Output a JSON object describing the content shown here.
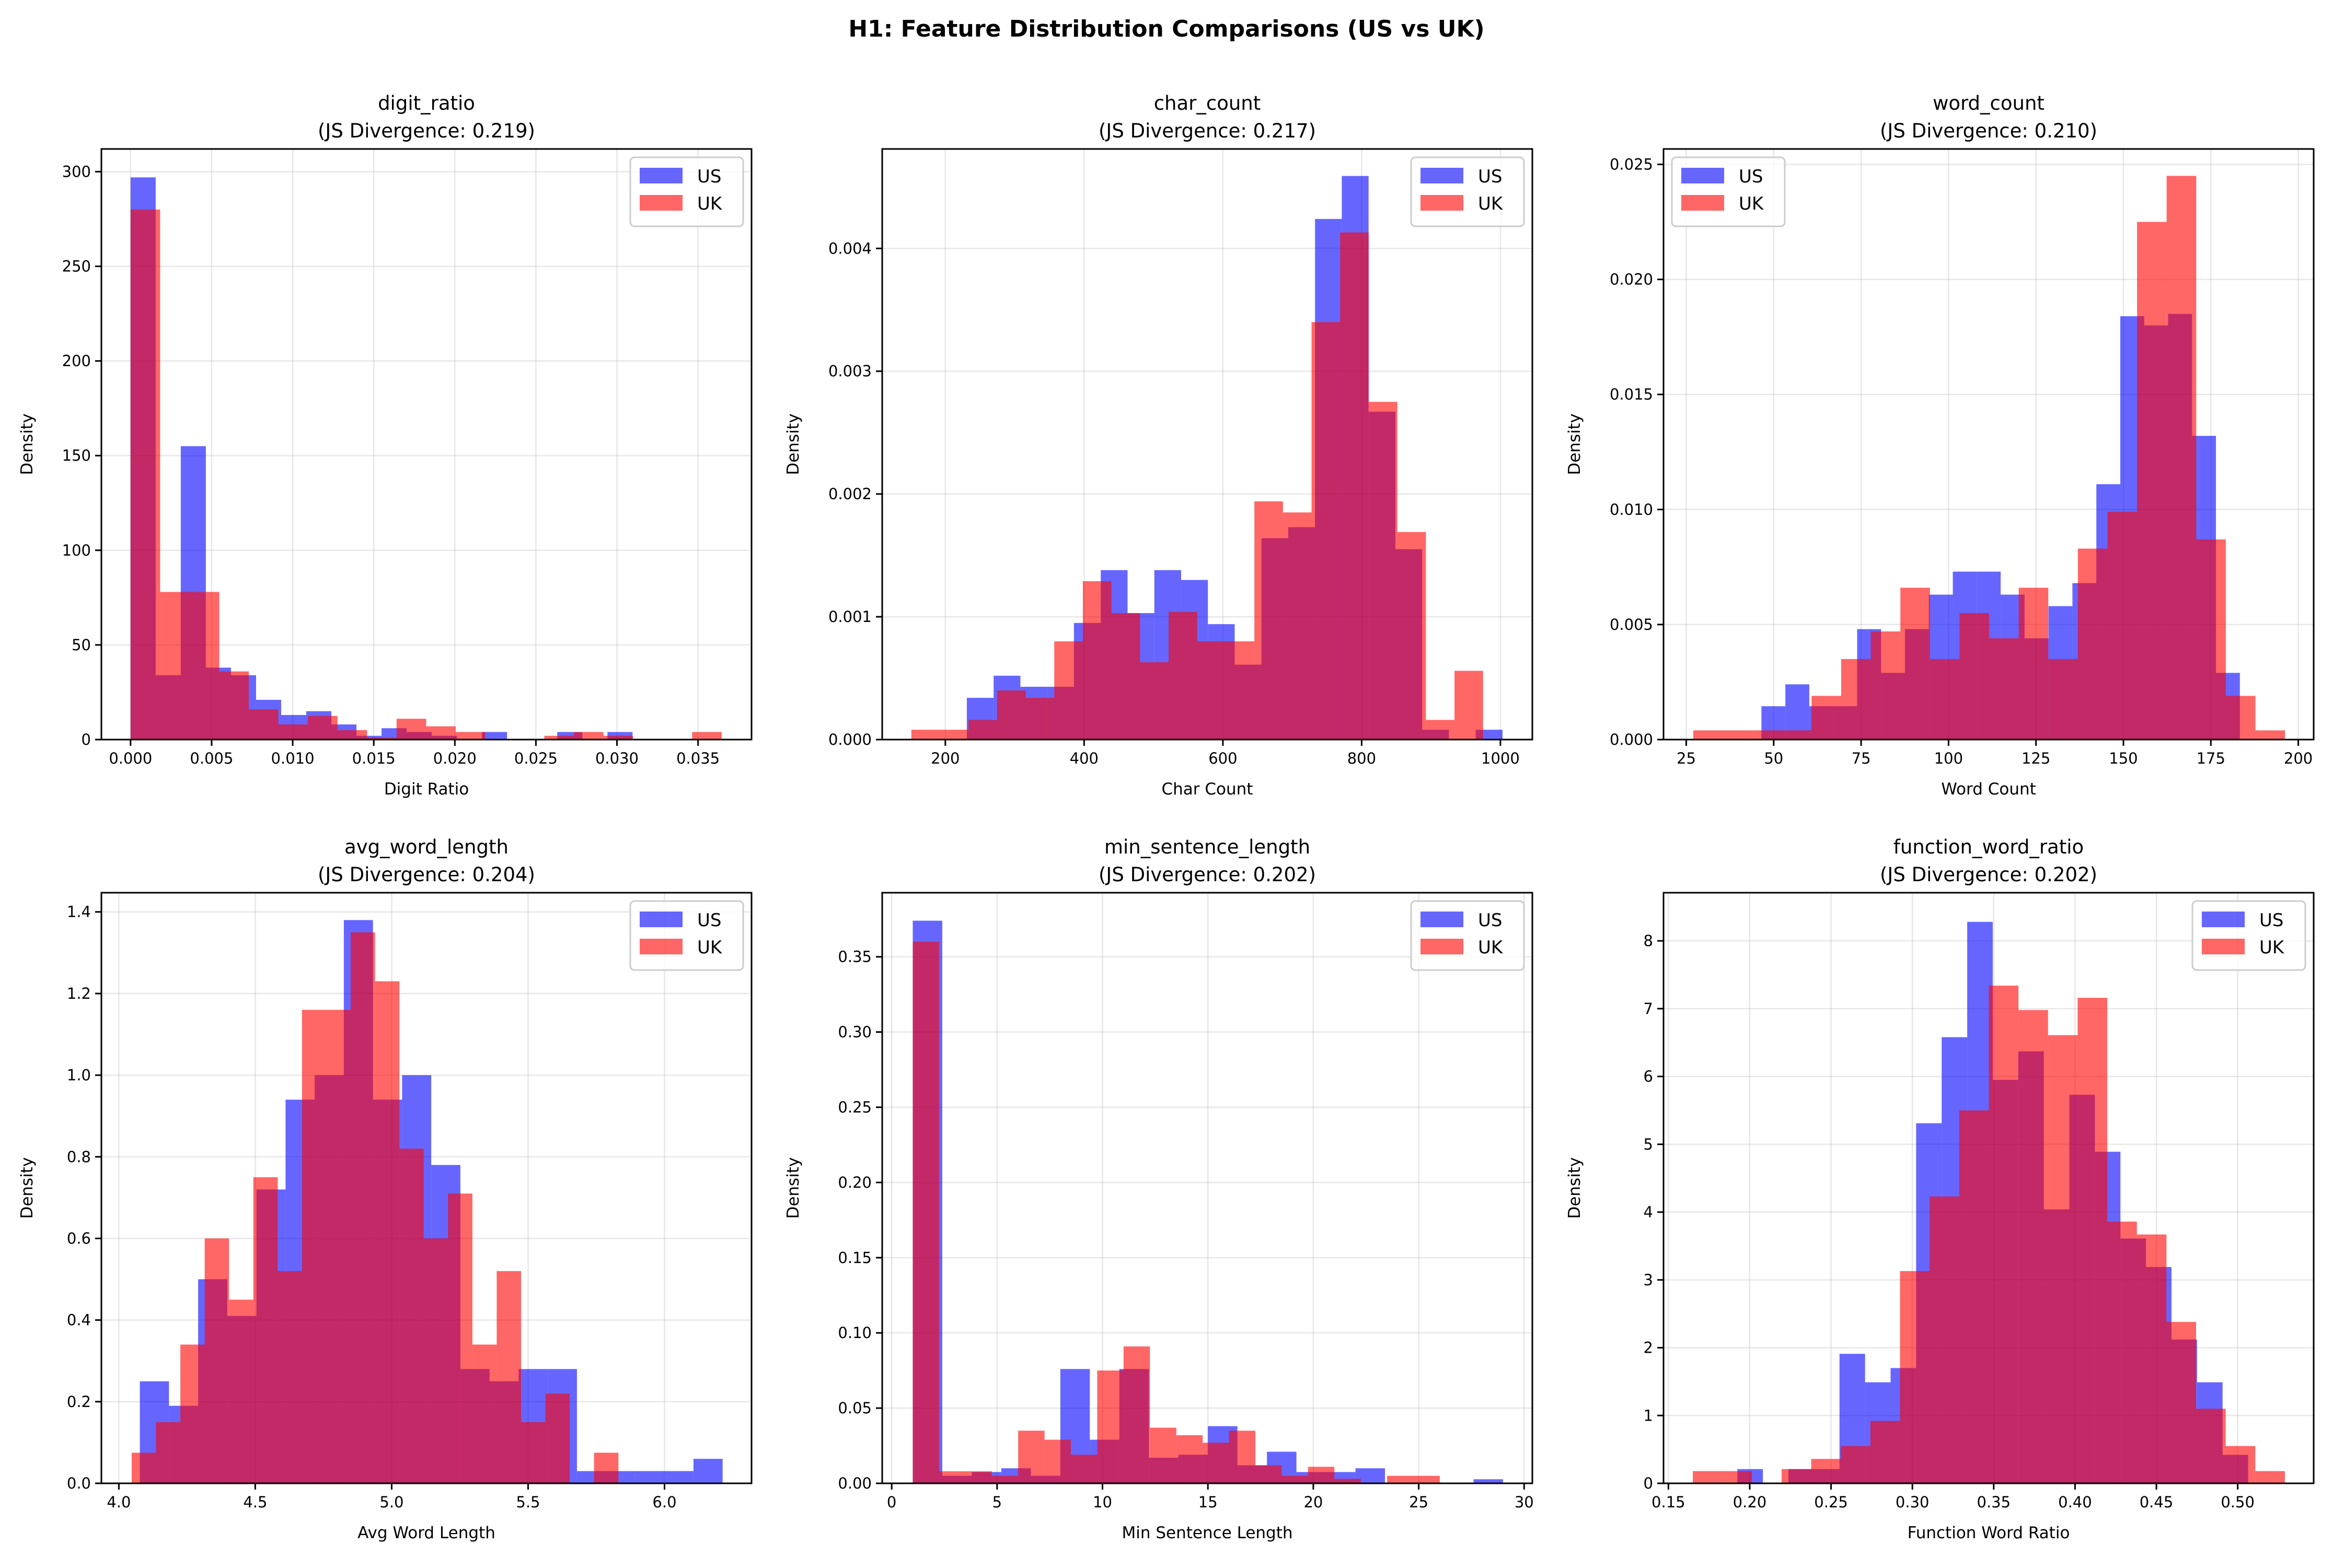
{
  "title": "H1: Feature Distribution Comparisons (US vs UK)",
  "colors": {
    "US": "#0000ff",
    "UK": "#ff0000",
    "alpha": 0.6,
    "grid": "#b0b0b0"
  },
  "chart_data": [
    {
      "type": "bar",
      "subtype": "histogram",
      "title": "digit_ratio",
      "subtitle": "(JS Divergence: 0.219)",
      "xlabel": "Digit Ratio",
      "ylabel": "Density",
      "xlim": [
        -0.0018,
        0.0383
      ],
      "ylim": [
        0,
        312
      ],
      "xticks": [
        0,
        0.005,
        0.01,
        0.015,
        0.02,
        0.025,
        0.03,
        0.035
      ],
      "xtick_labels": [
        "0.000",
        "0.005",
        "0.010",
        "0.015",
        "0.020",
        "0.025",
        "0.030",
        "0.035"
      ],
      "yticks": [
        0,
        50,
        100,
        150,
        200,
        250,
        300
      ],
      "ytick_labels": [
        "0",
        "50",
        "100",
        "150",
        "200",
        "250",
        "300"
      ],
      "grid": true,
      "legend": "top-right",
      "series": [
        {
          "name": "US",
          "bin_start": 0,
          "bin_width": 0.001548,
          "values": [
            297,
            34,
            155,
            38,
            34,
            21,
            13,
            15,
            8,
            2,
            6,
            4,
            2,
            0,
            4,
            0,
            0,
            4,
            0,
            4
          ]
        },
        {
          "name": "UK",
          "bin_start": 0,
          "bin_width": 0.001823,
          "values": [
            280,
            78,
            78,
            36,
            16,
            8,
            12.5,
            5,
            1,
            11,
            7,
            4,
            0,
            0,
            2,
            4,
            2,
            0,
            0,
            4
          ]
        }
      ]
    },
    {
      "type": "bar",
      "subtype": "histogram",
      "title": "char_count",
      "subtitle": "(JS Divergence: 0.217)",
      "xlabel": "Char Count",
      "ylabel": "Density",
      "xlim": [
        109,
        1046
      ],
      "ylim": [
        0,
        0.00481
      ],
      "xticks": [
        200,
        400,
        600,
        800,
        1000
      ],
      "xtick_labels": [
        "200",
        "400",
        "600",
        "800",
        "1000"
      ],
      "yticks": [
        0,
        0.001,
        0.002,
        0.003,
        0.004
      ],
      "ytick_labels": [
        "0.000",
        "0.001",
        "0.002",
        "0.003",
        "0.004"
      ],
      "grid": true,
      "legend": "top-right",
      "series": [
        {
          "name": "US",
          "bin_start": 231,
          "bin_width": 38.6,
          "values": [
            0.00034,
            0.00052,
            0.00043,
            0.00043,
            0.00095,
            0.00138,
            0.00103,
            0.00138,
            0.0013,
            0.00094,
            0.00061,
            0.00164,
            0.00173,
            0.00424,
            0.00459,
            0.00267,
            0.00155,
            8e-05,
            0,
            8e-05
          ]
        },
        {
          "name": "UK",
          "bin_start": 151,
          "bin_width": 41.2,
          "values": [
            8e-05,
            8e-05,
            0.00016,
            0.0004,
            0.00034,
            0.0008,
            0.00129,
            0.00103,
            0.00063,
            0.00104,
            0.0008,
            0.0008,
            0.00194,
            0.00185,
            0.0034,
            0.00413,
            0.00275,
            0.00169,
            0.00016,
            0.00056
          ]
        }
      ]
    },
    {
      "type": "bar",
      "subtype": "histogram",
      "title": "word_count",
      "subtitle": "(JS Divergence: 0.210)",
      "xlabel": "Word Count",
      "ylabel": "Density",
      "xlim": [
        18.5,
        204.4
      ],
      "ylim": [
        0,
        0.02567
      ],
      "xticks": [
        25,
        50,
        75,
        100,
        125,
        150,
        175,
        200
      ],
      "xtick_labels": [
        "25",
        "50",
        "75",
        "100",
        "125",
        "150",
        "175",
        "200"
      ],
      "yticks": [
        0,
        0.005,
        0.01,
        0.015,
        0.02,
        0.025
      ],
      "ytick_labels": [
        "0.000",
        "0.005",
        "0.010",
        "0.015",
        "0.020",
        "0.025"
      ],
      "grid": true,
      "legend": "top-left",
      "series": [
        {
          "name": "US",
          "bin_start": 46.5,
          "bin_width": 6.84,
          "values": [
            0.00145,
            0.0024,
            0.00145,
            0.00145,
            0.0048,
            0.0029,
            0.0048,
            0.0063,
            0.0073,
            0.0073,
            0.0063,
            0.0044,
            0.0058,
            0.0068,
            0.0111,
            0.0184,
            0.018,
            0.0185,
            0.0132,
            0.0029
          ]
        },
        {
          "name": "UK",
          "bin_start": 27,
          "bin_width": 8.46,
          "values": [
            0.0004,
            0.0004,
            0.0004,
            0.0004,
            0.0019,
            0.0035,
            0.0047,
            0.0066,
            0.0035,
            0.0055,
            0.0044,
            0.0066,
            0.0035,
            0.0083,
            0.0099,
            0.0225,
            0.0245,
            0.0087,
            0.0019,
            0.0004
          ]
        }
      ]
    },
    {
      "type": "bar",
      "subtype": "histogram",
      "title": "avg_word_length",
      "subtitle": "(JS Divergence: 0.204)",
      "xlabel": "Avg Word Length",
      "ylabel": "Density",
      "xlim": [
        3.936,
        6.319
      ],
      "ylim": [
        0,
        1.447
      ],
      "xticks": [
        4.0,
        4.5,
        5.0,
        5.5,
        6.0
      ],
      "xtick_labels": [
        "4.0",
        "4.5",
        "5.0",
        "5.5",
        "6.0"
      ],
      "yticks": [
        0,
        0.2,
        0.4,
        0.6,
        0.8,
        1.0,
        1.2,
        1.4
      ],
      "ytick_labels": [
        "0.0",
        "0.2",
        "0.4",
        "0.6",
        "0.8",
        "1.0",
        "1.2",
        "1.4"
      ],
      "grid": true,
      "legend": "top-right",
      "series": [
        {
          "name": "US",
          "bin_start": 4.077,
          "bin_width": 0.1068,
          "values": [
            0.25,
            0.19,
            0.5,
            0.41,
            0.72,
            0.94,
            1.0,
            1.38,
            0.94,
            1.0,
            0.78,
            0.28,
            0.25,
            0.28,
            0.28,
            0.03,
            0.03,
            0.03,
            0.03,
            0.06
          ]
        },
        {
          "name": "UK",
          "bin_start": 4.047,
          "bin_width": 0.0892,
          "values": [
            0.075,
            0.15,
            0.34,
            0.6,
            0.45,
            0.75,
            0.52,
            1.16,
            1.16,
            1.35,
            1.23,
            0.82,
            0.6,
            0.71,
            0.34,
            0.52,
            0.15,
            0.22,
            0,
            0.075
          ]
        }
      ]
    },
    {
      "type": "bar",
      "subtype": "histogram",
      "title": "min_sentence_length",
      "subtitle": "(JS Divergence: 0.202)",
      "xlabel": "Min Sentence Length",
      "ylabel": "Density",
      "xlim": [
        -0.45,
        30.39
      ],
      "ylim": [
        0,
        0.3926
      ],
      "xticks": [
        0,
        5,
        10,
        15,
        20,
        25,
        30
      ],
      "xtick_labels": [
        "0",
        "5",
        "10",
        "15",
        "20",
        "25",
        "30"
      ],
      "yticks": [
        0,
        0.05,
        0.1,
        0.15,
        0.2,
        0.25,
        0.3,
        0.35
      ],
      "ytick_labels": [
        "0.00",
        "0.05",
        "0.10",
        "0.15",
        "0.20",
        "0.25",
        "0.30",
        "0.35"
      ],
      "grid": true,
      "legend": "top-right",
      "series": [
        {
          "name": "US",
          "bin_start": 1,
          "bin_width": 1.4,
          "values": [
            0.374,
            0.005,
            0.0075,
            0.01,
            0.005,
            0.076,
            0.029,
            0.076,
            0.017,
            0.019,
            0.038,
            0.012,
            0.021,
            0.0075,
            0.0075,
            0.01,
            0,
            0,
            0,
            0.0027
          ]
        },
        {
          "name": "UK",
          "bin_start": 1,
          "bin_width": 1.25,
          "values": [
            0.36,
            0.008,
            0.008,
            0.005,
            0.035,
            0.029,
            0.019,
            0.075,
            0.091,
            0.037,
            0.032,
            0.027,
            0.035,
            0.012,
            0.005,
            0.011,
            0.003,
            0,
            0.005,
            0.005
          ]
        }
      ]
    },
    {
      "type": "bar",
      "subtype": "histogram",
      "title": "function_word_ratio",
      "subtitle": "(JS Divergence: 0.202)",
      "xlabel": "Function Word Ratio",
      "ylabel": "Density",
      "xlim": [
        0.147,
        0.5467
      ],
      "ylim": [
        0,
        8.71
      ],
      "xticks": [
        0.15,
        0.2,
        0.25,
        0.3,
        0.35,
        0.4,
        0.45,
        0.5
      ],
      "xtick_labels": [
        "0.15",
        "0.20",
        "0.25",
        "0.30",
        "0.35",
        "0.40",
        "0.45",
        "0.50"
      ],
      "yticks": [
        0,
        1,
        2,
        3,
        4,
        5,
        6,
        7,
        8
      ],
      "ytick_labels": [
        "0",
        "1",
        "2",
        "3",
        "4",
        "5",
        "6",
        "7",
        "8"
      ],
      "grid": true,
      "legend": "top-right",
      "series": [
        {
          "name": "US",
          "bin_start": 0.1924,
          "bin_width": 0.0157,
          "values": [
            0.21,
            0,
            0.21,
            0.21,
            1.91,
            1.49,
            1.7,
            5.31,
            6.58,
            8.28,
            5.95,
            6.37,
            4.04,
            5.73,
            4.89,
            3.61,
            3.19,
            2.12,
            1.49,
            0.42
          ]
        },
        {
          "name": "UK",
          "bin_start": 0.165,
          "bin_width": 0.0182,
          "values": [
            0.18,
            0.18,
            0,
            0.21,
            0.36,
            0.55,
            0.92,
            3.13,
            4.23,
            5.5,
            7.34,
            6.98,
            6.61,
            7.16,
            3.86,
            3.67,
            2.38,
            1.1,
            0.55,
            0.18
          ]
        }
      ]
    }
  ]
}
